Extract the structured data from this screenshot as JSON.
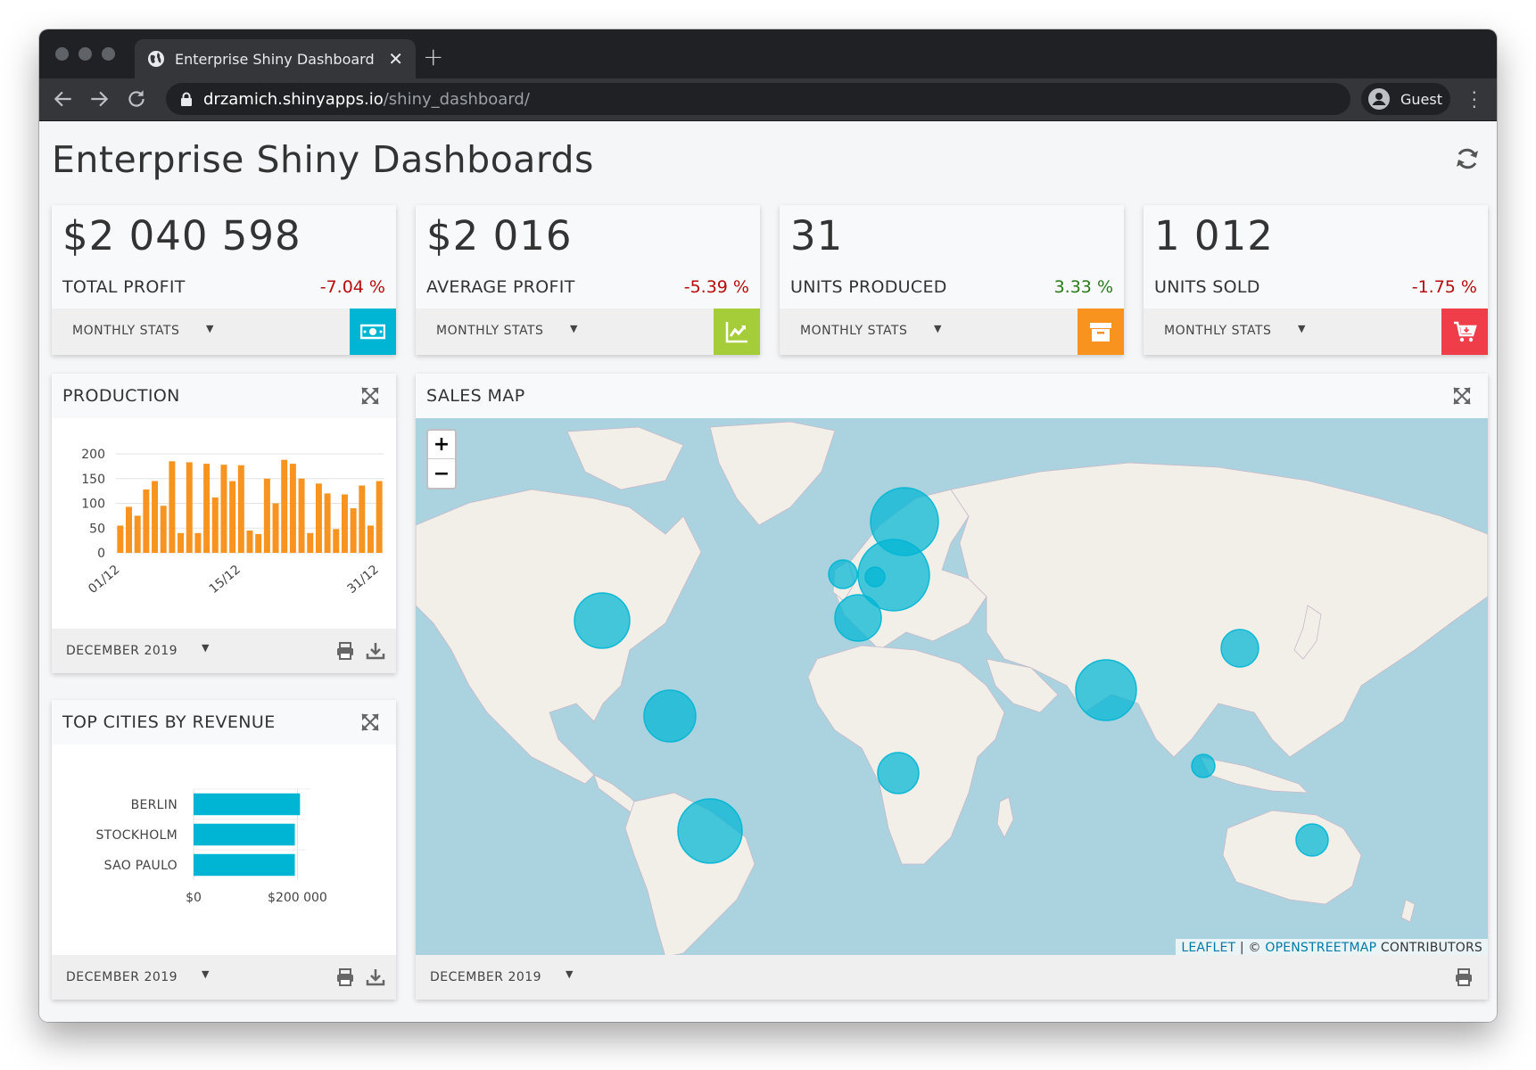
{
  "browser": {
    "tab_title": "Enterprise Shiny Dashboard",
    "url_host": "drzamich.shinyapps.io",
    "url_path": "/shiny_dashboard/",
    "profile": "Guest"
  },
  "page": {
    "title": "Enterprise Shiny Dashboards"
  },
  "kpis": [
    {
      "value": "$2 040 598",
      "label": "TOTAL PROFIT",
      "change": "-7.04 %",
      "trend": "negative",
      "dropdown": "MONTHLY STATS",
      "icon": "money-icon",
      "color": "#00b5d4"
    },
    {
      "value": "$2 016",
      "label": "AVERAGE PROFIT",
      "change": "-5.39 %",
      "trend": "negative",
      "dropdown": "MONTHLY STATS",
      "icon": "trend-chart-icon",
      "color": "#a5cd39"
    },
    {
      "value": "31",
      "label": "UNITS PRODUCED",
      "change": "3.33 %",
      "trend": "positive",
      "dropdown": "MONTHLY STATS",
      "icon": "archive-icon",
      "color": "#f7931e"
    },
    {
      "value": "1 012",
      "label": "UNITS SOLD",
      "change": "-1.75 %",
      "trend": "negative",
      "dropdown": "MONTHLY STATS",
      "icon": "cart-icon",
      "color": "#ef3e4a"
    }
  ],
  "production": {
    "title": "PRODUCTION",
    "period": "DECEMBER 2019",
    "chart_data": {
      "type": "bar",
      "x": [
        "01/12",
        "02/12",
        "03/12",
        "04/12",
        "05/12",
        "06/12",
        "07/12",
        "08/12",
        "09/12",
        "10/12",
        "11/12",
        "12/12",
        "13/12",
        "14/12",
        "15/12",
        "16/12",
        "17/12",
        "18/12",
        "19/12",
        "20/12",
        "21/12",
        "22/12",
        "23/12",
        "24/12",
        "25/12",
        "26/12",
        "27/12",
        "28/12",
        "29/12",
        "30/12",
        "31/12"
      ],
      "x_tick_labels": [
        "01/12",
        "15/12",
        "31/12"
      ],
      "values": [
        55,
        93,
        75,
        128,
        145,
        95,
        185,
        40,
        183,
        40,
        180,
        112,
        178,
        145,
        177,
        45,
        38,
        150,
        100,
        188,
        180,
        150,
        40,
        140,
        120,
        48,
        118,
        90,
        136,
        55,
        145
      ],
      "ylim": [
        0,
        200
      ],
      "yticks": [
        0,
        50,
        100,
        150,
        200
      ],
      "color": "#f7931e"
    }
  },
  "cities": {
    "title": "TOP CITIES BY REVENUE",
    "period": "DECEMBER 2019",
    "chart_data": {
      "type": "bar",
      "orientation": "horizontal",
      "categories": [
        "BERLIN",
        "STOCKHOLM",
        "SAO PAULO"
      ],
      "values": [
        205000,
        195000,
        195000
      ],
      "xlim": [
        0,
        225000
      ],
      "xtick_labels": [
        "$0",
        "$200 000"
      ],
      "xtick_values": [
        0,
        200000
      ],
      "color": "#00b5d4"
    }
  },
  "sales_map": {
    "title": "SALES MAP",
    "period": "DECEMBER 2019",
    "zoom_in": "+",
    "zoom_out": "−",
    "attribution_leaflet": "LEAFLET",
    "attribution_sep": " | © ",
    "attribution_osm": "OPENSTREETMAP",
    "attribution_rest": " CONTRIBUTORS",
    "bubble_color": "#00b5d4"
  }
}
